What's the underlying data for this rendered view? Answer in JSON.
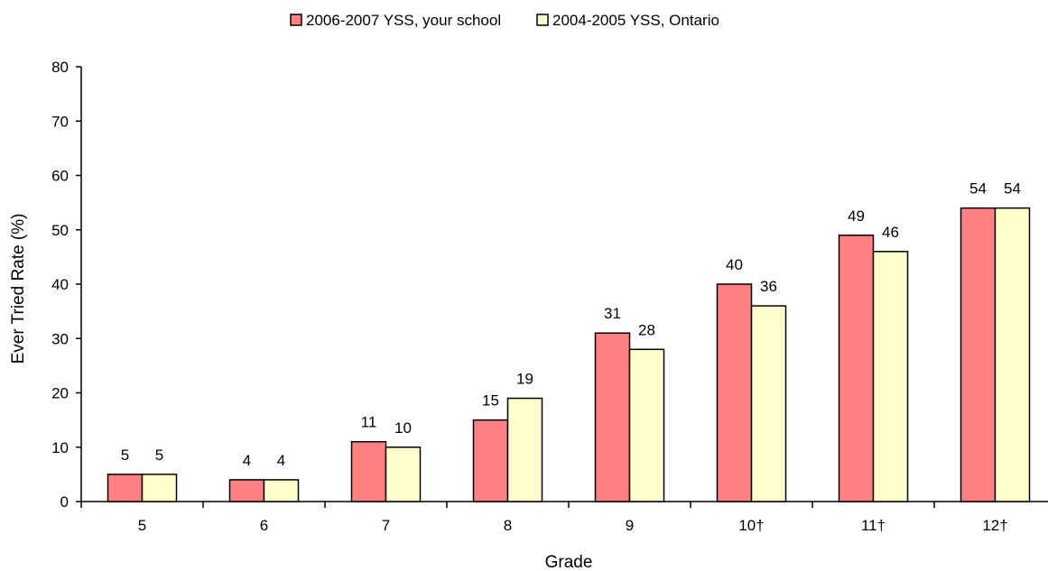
{
  "chart_data": {
    "type": "bar",
    "title": "",
    "xlabel": "Grade",
    "ylabel": "Ever Tried Rate (%)",
    "categories": [
      "5",
      "6",
      "7",
      "8",
      "9",
      "10†",
      "11†",
      "12†"
    ],
    "series": [
      {
        "name": "2006-2007 YSS, your school",
        "color": "#ff8080",
        "values": [
          5,
          4,
          11,
          15,
          31,
          40,
          49,
          54
        ]
      },
      {
        "name": "2004-2005 YSS, Ontario",
        "color": "#ffffcc",
        "values": [
          5,
          4,
          10,
          19,
          28,
          36,
          46,
          54
        ]
      }
    ],
    "ylim": [
      0,
      80
    ],
    "yticks": [
      0,
      10,
      20,
      30,
      40,
      50,
      60,
      70,
      80
    ],
    "grid": false,
    "legend": "top-center",
    "data_labels": true
  }
}
